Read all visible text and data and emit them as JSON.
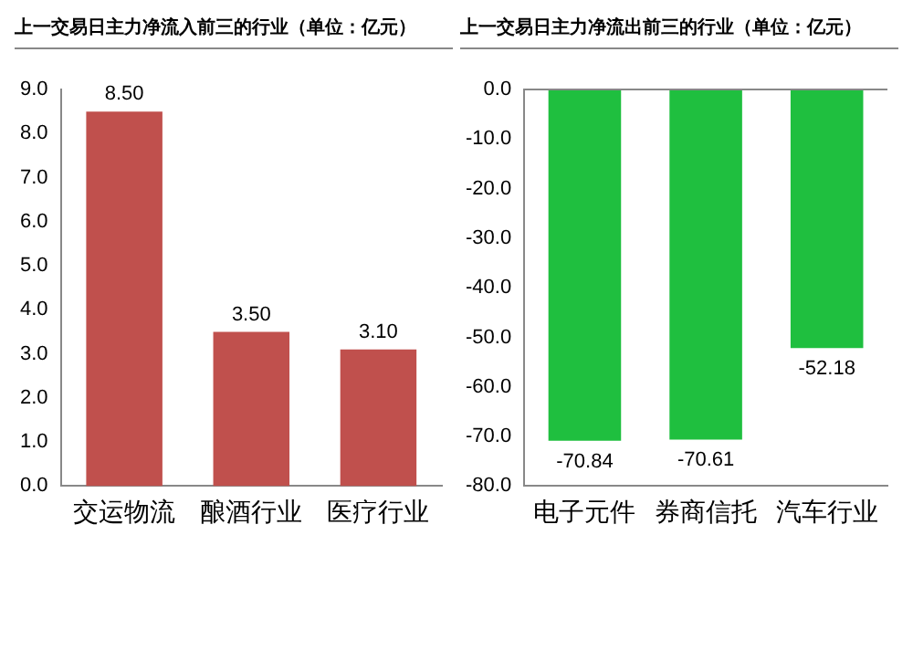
{
  "chart_data": [
    {
      "type": "bar",
      "title": "上一交易日主力净流入前三的行业（单位：亿元）",
      "categories": [
        "交运物流",
        "酿酒行业",
        "医疗行业"
      ],
      "values": [
        8.5,
        3.5,
        3.1
      ],
      "color": "#c0504d",
      "value_labels": [
        "8.50",
        "3.50",
        "3.10"
      ],
      "ylim": [
        0,
        9
      ],
      "yticks": [
        {
          "value": 0,
          "label": "0.0"
        },
        {
          "value": 1,
          "label": "1.0"
        },
        {
          "value": 2,
          "label": "2.0"
        },
        {
          "value": 3,
          "label": "3.0"
        },
        {
          "value": 4,
          "label": "4.0"
        },
        {
          "value": 5,
          "label": "5.0"
        },
        {
          "value": 6,
          "label": "6.0"
        },
        {
          "value": 7,
          "label": "7.0"
        },
        {
          "value": 8,
          "label": "8.0"
        },
        {
          "value": 9,
          "label": "9.0"
        }
      ],
      "grid": false,
      "legend": false
    },
    {
      "type": "bar",
      "title": "上一交易日主力净流出前三的行业（单位：亿元）",
      "categories": [
        "电子元件",
        "券商信托",
        "汽车行业"
      ],
      "values": [
        -70.84,
        -70.61,
        -52.18
      ],
      "color": "#1fbf3f",
      "data_labels": true,
      "ylim": [
        -80,
        0
      ],
      "yticks": [
        {
          "value": 0,
          "label": "0.0"
        },
        {
          "value": -10,
          "label": "-10.0"
        },
        {
          "value": -20,
          "label": "-20.0"
        },
        {
          "value": -30,
          "label": "-30.0"
        },
        {
          "value": -40,
          "label": "-40.0"
        },
        {
          "value": -50,
          "label": "-50.0"
        },
        {
          "value": -60,
          "label": "-60.0"
        },
        {
          "value": -70,
          "label": "-70.0"
        },
        {
          "value": -80,
          "label": "-80.0"
        }
      ],
      "grid": false,
      "legend": false
    }
  ]
}
